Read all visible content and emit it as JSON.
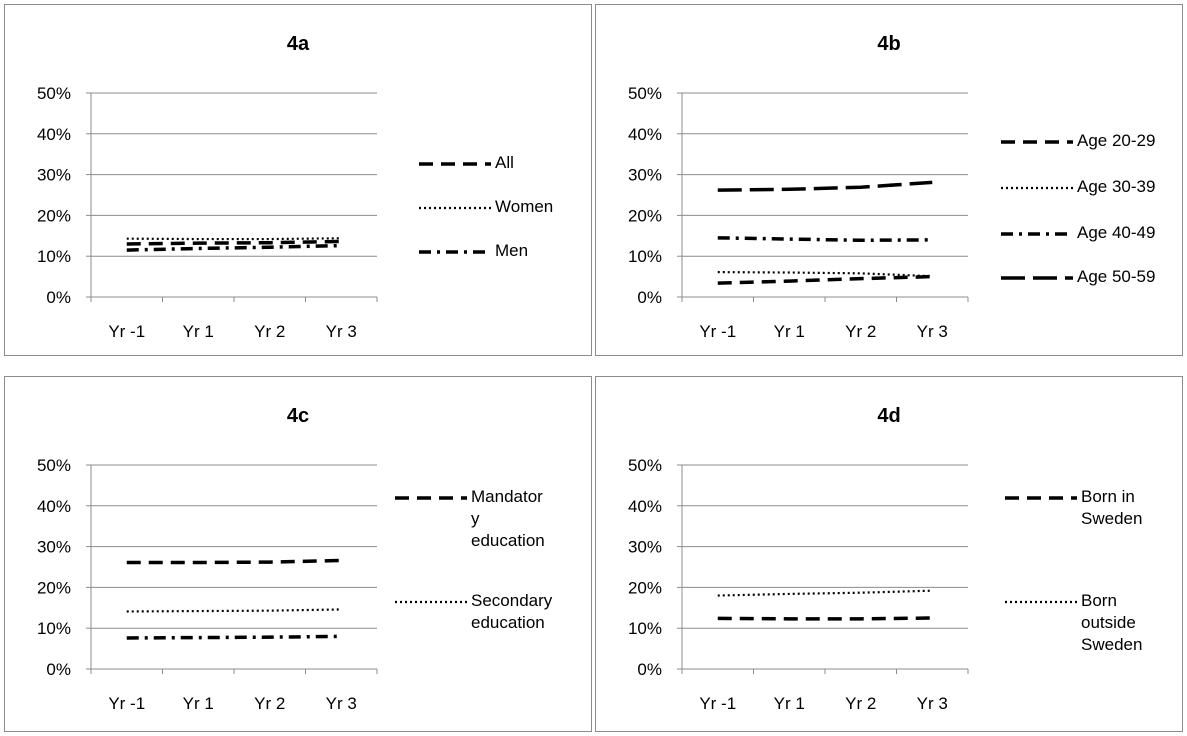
{
  "chart_data": [
    {
      "id": "4a",
      "type": "line",
      "title": "4a",
      "categories": [
        "Yr -1",
        "Yr 1",
        "Yr 2",
        "Yr 3"
      ],
      "ylim": [
        0,
        50
      ],
      "yticks": [
        "0%",
        "10%",
        "20%",
        "30%",
        "40%",
        "50%"
      ],
      "grid": true,
      "legend_position": "right",
      "series": [
        {
          "name": "All",
          "style": "dashed",
          "values": [
            13,
            13.2,
            13.3,
            13.6
          ]
        },
        {
          "name": "Women",
          "style": "dotted",
          "values": [
            14.3,
            14.2,
            14.2,
            14.4
          ]
        },
        {
          "name": "Men",
          "style": "dashdot",
          "values": [
            11.5,
            11.9,
            12.2,
            12.6
          ]
        }
      ]
    },
    {
      "id": "4b",
      "type": "line",
      "title": "4b",
      "categories": [
        "Yr -1",
        "Yr 1",
        "Yr 2",
        "Yr 3"
      ],
      "ylim": [
        0,
        50
      ],
      "yticks": [
        "0%",
        "10%",
        "20%",
        "30%",
        "40%",
        "50%"
      ],
      "grid": true,
      "legend_position": "right",
      "series": [
        {
          "name": "Age 20-29",
          "style": "dashed",
          "values": [
            3.4,
            3.9,
            4.5,
            5
          ]
        },
        {
          "name": "Age 30-39",
          "style": "dotted",
          "values": [
            6.1,
            6,
            5.8,
            5.1
          ]
        },
        {
          "name": "Age 40-49",
          "style": "dashdot",
          "values": [
            14.5,
            14.2,
            13.9,
            14
          ]
        },
        {
          "name": "Age 50-59",
          "style": "longdash",
          "values": [
            26.2,
            26.4,
            26.9,
            28.1
          ]
        }
      ]
    },
    {
      "id": "4c",
      "type": "line",
      "title": "4c",
      "categories": [
        "Yr -1",
        "Yr 1",
        "Yr 2",
        "Yr 3"
      ],
      "ylim": [
        0,
        50
      ],
      "yticks": [
        "0%",
        "10%",
        "20%",
        "30%",
        "40%",
        "50%"
      ],
      "grid": true,
      "legend_position": "right",
      "series": [
        {
          "name": "Mandatory education",
          "style": "dashed",
          "values": [
            26.1,
            26.1,
            26.2,
            26.6
          ],
          "legend_lines": [
            "Mandator",
            "y",
            "education"
          ]
        },
        {
          "name": "Secondary education",
          "style": "dotted",
          "values": [
            14.1,
            14.2,
            14.3,
            14.6
          ],
          "legend_lines": [
            "Secondary",
            "education"
          ]
        },
        {
          "name": "",
          "style": "dashdot",
          "values": [
            7.6,
            7.7,
            7.8,
            8
          ]
        }
      ]
    },
    {
      "id": "4d",
      "type": "line",
      "title": "4d",
      "categories": [
        "Yr -1",
        "Yr 1",
        "Yr 2",
        "Yr 3"
      ],
      "ylim": [
        0,
        50
      ],
      "yticks": [
        "0%",
        "10%",
        "20%",
        "30%",
        "40%",
        "50%"
      ],
      "grid": true,
      "legend_position": "right",
      "series": [
        {
          "name": "Born in Sweden",
          "style": "dashed",
          "values": [
            12.4,
            12.3,
            12.3,
            12.5
          ],
          "legend_lines": [
            "Born in",
            "Sweden"
          ]
        },
        {
          "name": "Born outside Sweden",
          "style": "dotted",
          "values": [
            18,
            18.4,
            18.7,
            19.2
          ],
          "legend_lines": [
            "Born",
            "outside",
            "Sweden"
          ]
        }
      ]
    }
  ]
}
